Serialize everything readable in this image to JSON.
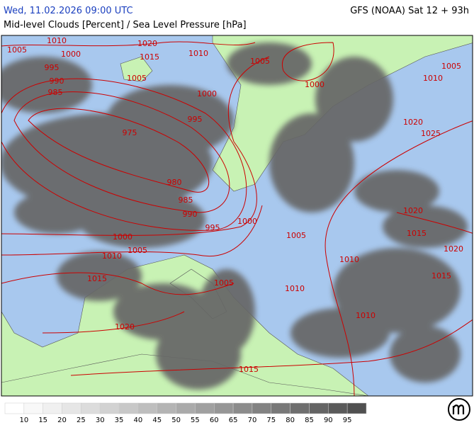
{
  "header": {
    "left": "Wed, 11.02.2026 09:00 UTC",
    "right": "GFS (NOAA) Sat 12 + 93h",
    "subtitle": "Mid-level Clouds [Percent] / Sea Level Pressure [hPa]"
  },
  "map": {
    "isobar_color": "#cc0000",
    "isobar_labels": [
      "1005",
      "1010",
      "1020",
      "1015",
      "1010",
      "1000",
      "995",
      "990",
      "985",
      "1005",
      "1000",
      "995",
      "975",
      "980",
      "985",
      "990",
      "995",
      "1000",
      "1000",
      "1005",
      "1010",
      "1015",
      "1005",
      "1005",
      "1000",
      "1005",
      "1010",
      "1020",
      "1025",
      "1020",
      "1015",
      "1020",
      "1015",
      "1005",
      "1010",
      "1010",
      "1010",
      "1020",
      "1015"
    ]
  },
  "colorbar": {
    "ticks": [
      10,
      15,
      20,
      25,
      30,
      35,
      40,
      45,
      50,
      55,
      60,
      65,
      70,
      75,
      80,
      85,
      90,
      95
    ],
    "colors": [
      "#ffffff",
      "#f8f8f8",
      "#f0f0f0",
      "#e6e6e6",
      "#dcdcdc",
      "#d2d2d2",
      "#c8c8c8",
      "#bebebe",
      "#b4b4b4",
      "#aaaaaa",
      "#a0a0a0",
      "#969696",
      "#8c8c8c",
      "#828282",
      "#787878",
      "#6e6e6e",
      "#646464",
      "#5a5a5a",
      "#505050"
    ]
  }
}
